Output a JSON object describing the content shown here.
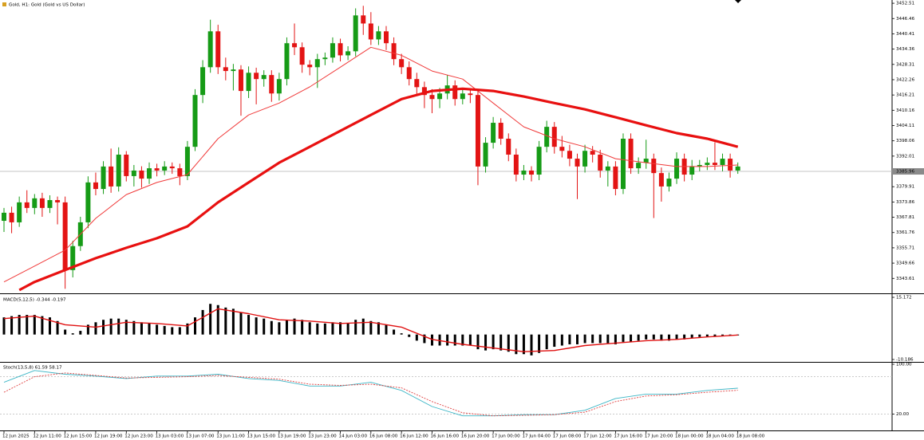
{
  "chart_data": [
    {
      "type": "candlestick",
      "title": "Gold, H1: Gold (Gold vs US Dollar)",
      "up_color": "#169b16",
      "down_color": "#e31414",
      "categories": [
        "12 Jun 2025",
        null,
        null,
        null,
        "12 Jun 11:00",
        null,
        null,
        null,
        "12 Jun 15:00",
        null,
        null,
        null,
        "12 Jun 19:00",
        null,
        null,
        null,
        "12 Jun 23:00",
        null,
        null,
        null,
        "13 Jun 03:00",
        null,
        null,
        null,
        "13 Jun 07:00",
        null,
        null,
        null,
        "13 Jun 11:00",
        null,
        null,
        null,
        "13 Jun 15:00",
        null,
        null,
        null,
        "13 Jun 19:00",
        null,
        null,
        null,
        "13 Jun 23:00",
        null,
        null,
        null,
        "14 Jun 03:00",
        null,
        null,
        null,
        "16 Jun 08:00",
        null,
        null,
        null,
        "16 Jun 12:00",
        null,
        null,
        null,
        "16 Jun 16:00",
        null,
        null,
        null,
        "16 Jun 20:00",
        null,
        null,
        null,
        "17 Jun 00:00",
        null,
        null,
        null,
        "17 Jun 04:00",
        null,
        null,
        null,
        "17 Jun 08:00",
        null,
        null,
        null,
        "17 Jun 12:00",
        null,
        null,
        null,
        "17 Jun 16:00",
        null,
        null,
        null,
        "17 Jun 20:00",
        null,
        null,
        null,
        "18 Jun 00:00",
        null,
        null,
        null,
        "18 Jun 04:00",
        null,
        null,
        null,
        "18 Jun 08:00"
      ],
      "open": [
        3366.4,
        3369.6,
        3365.8,
        3373.7,
        3371.5,
        3375.3,
        3371.5,
        3374.6,
        3373.7,
        3346.9,
        3356.4,
        3365.8,
        3381.6,
        3379.0,
        3387.9,
        3380.0,
        3392.6,
        3384.1,
        3386.3,
        3383.1,
        3387.2,
        3386.3,
        3387.9,
        3387.2,
        3384.1,
        3395.7,
        3416.2,
        3427.2,
        3441.4,
        3427.2,
        3425.7,
        3426.3,
        3417.8,
        3425.0,
        3422.5,
        3424.1,
        3416.8,
        3422.5,
        3436.7,
        3435.1,
        3428.2,
        3427.2,
        3430.4,
        3431.0,
        3436.7,
        3431.9,
        3433.5,
        3447.7,
        3444.5,
        3438.2,
        3441.4,
        3436.7,
        3430.4,
        3427.2,
        3422.5,
        3419.3,
        3416.2,
        3414.6,
        3416.8,
        3420.0,
        3414.6,
        3416.8,
        3416.2,
        3387.9,
        3397.3,
        3405.2,
        3398.9,
        3392.6,
        3384.7,
        3386.3,
        3384.7,
        3395.7,
        3403.6,
        3395.7,
        3394.1,
        3391.0,
        3387.9,
        3394.1,
        3392.6,
        3386.3,
        3387.9,
        3379.0,
        3398.9,
        3387.2,
        3389.4,
        3391.0,
        3385.3,
        3380.0,
        3383.1,
        3391.0,
        3384.7,
        3387.9,
        3388.5,
        3389.4,
        3388.5,
        3391.0,
        3386.3
      ],
      "high": [
        3371.5,
        3372.0,
        3376.0,
        3378.5,
        3377.0,
        3377.5,
        3376.5,
        3376.0,
        3376.0,
        3358.5,
        3368.0,
        3384.0,
        3385.5,
        3390.0,
        3395.0,
        3395.5,
        3394.0,
        3388.5,
        3388.0,
        3389.5,
        3389.0,
        3390.0,
        3389.5,
        3389.0,
        3398.0,
        3418.5,
        3430.0,
        3446.0,
        3444.0,
        3431.0,
        3428.5,
        3428.0,
        3427.5,
        3427.0,
        3426.0,
        3426.0,
        3425.0,
        3439.0,
        3444.5,
        3437.0,
        3430.0,
        3432.5,
        3433.0,
        3439.0,
        3438.5,
        3435.5,
        3450.5,
        3451.5,
        3449.0,
        3443.5,
        3443.5,
        3439.0,
        3432.5,
        3429.5,
        3425.0,
        3421.5,
        3418.5,
        3419.0,
        3424.0,
        3422.0,
        3419.0,
        3418.5,
        3418.0,
        3399.5,
        3407.5,
        3407.0,
        3401.0,
        3395.0,
        3388.5,
        3388.0,
        3398.0,
        3406.0,
        3405.5,
        3400.0,
        3396.5,
        3393.0,
        3396.5,
        3396.0,
        3394.5,
        3390.0,
        3390.0,
        3401.0,
        3401.0,
        3391.5,
        3398.5,
        3393.0,
        3387.5,
        3385.5,
        3393.5,
        3393.0,
        3390.5,
        3390.5,
        3391.5,
        3397.5,
        3393.0,
        3393.0,
        3389.5
      ],
      "low": [
        3362.0,
        3361.5,
        3364.0,
        3369.5,
        3369.0,
        3368.0,
        3369.5,
        3365.0,
        3339.5,
        3344.0,
        3354.5,
        3363.5,
        3376.5,
        3377.0,
        3377.5,
        3378.0,
        3382.0,
        3380.0,
        3379.5,
        3381.0,
        3384.0,
        3384.5,
        3385.0,
        3380.5,
        3382.5,
        3394.0,
        3413.0,
        3425.0,
        3424.5,
        3422.0,
        3418.0,
        3408.0,
        3415.0,
        3412.5,
        3419.5,
        3413.5,
        3414.0,
        3420.0,
        3432.0,
        3425.0,
        3424.0,
        3419.0,
        3428.0,
        3429.0,
        3429.5,
        3430.0,
        3431.5,
        3440.0,
        3436.0,
        3436.0,
        3434.0,
        3428.0,
        3424.5,
        3420.0,
        3416.5,
        3411.0,
        3409.0,
        3411.0,
        3414.5,
        3412.0,
        3412.5,
        3413.0,
        3380.5,
        3385.5,
        3395.0,
        3396.5,
        3390.0,
        3382.0,
        3382.5,
        3382.0,
        3382.5,
        3393.5,
        3393.0,
        3391.5,
        3388.0,
        3375.0,
        3385.5,
        3389.5,
        3383.5,
        3380.0,
        3376.5,
        3377.0,
        3385.0,
        3385.0,
        3387.0,
        3367.5,
        3374.0,
        3378.0,
        3381.0,
        3382.0,
        3382.5,
        3386.0,
        3386.5,
        3386.5,
        3386.0,
        3383.5,
        3385.0
      ],
      "close": [
        3369.6,
        3365.8,
        3373.7,
        3371.5,
        3375.3,
        3371.5,
        3374.6,
        3373.7,
        3346.9,
        3356.4,
        3365.8,
        3381.6,
        3379.0,
        3387.9,
        3380.0,
        3392.6,
        3384.1,
        3386.3,
        3383.1,
        3387.2,
        3386.3,
        3387.9,
        3387.2,
        3384.1,
        3395.7,
        3416.2,
        3427.2,
        3441.4,
        3427.2,
        3425.7,
        3426.3,
        3417.8,
        3425.0,
        3422.5,
        3424.1,
        3416.8,
        3422.5,
        3436.7,
        3435.1,
        3428.2,
        3427.2,
        3430.4,
        3431.0,
        3436.7,
        3431.9,
        3433.5,
        3447.7,
        3444.5,
        3438.2,
        3441.4,
        3436.7,
        3430.4,
        3427.2,
        3422.5,
        3419.3,
        3416.2,
        3414.6,
        3416.8,
        3420.0,
        3414.6,
        3416.8,
        3416.2,
        3387.9,
        3397.3,
        3405.2,
        3398.9,
        3392.6,
        3384.7,
        3386.3,
        3384.7,
        3395.7,
        3403.6,
        3395.7,
        3394.1,
        3391.0,
        3387.9,
        3394.1,
        3392.6,
        3386.3,
        3387.9,
        3379.0,
        3398.9,
        3387.2,
        3389.4,
        3391.0,
        3385.3,
        3380.0,
        3383.1,
        3391.0,
        3384.7,
        3387.9,
        3388.5,
        3389.4,
        3388.5,
        3391.0,
        3386.3,
        3387.9
      ],
      "series": [
        {
          "color": "#f03a3a",
          "width": 1,
          "x": [
            0,
            4,
            8,
            12,
            16,
            20,
            24,
            28,
            32,
            36,
            40,
            44,
            48,
            52,
            56,
            60,
            64,
            68,
            72,
            76,
            80,
            84,
            88,
            92,
            96
          ],
          "values": [
            3342.2,
            3348.5,
            3354.8,
            3367.4,
            3376.8,
            3381.6,
            3384.7,
            3398.9,
            3408.3,
            3413.0,
            3419.4,
            3427.2,
            3435.1,
            3431.9,
            3425.7,
            3422.5,
            3413.0,
            3403.6,
            3398.9,
            3395.7,
            3391.0,
            3389.4,
            3387.9,
            3387.9,
            3388.5
          ]
        },
        {
          "color": "#e81010",
          "width": 3.2,
          "x": [
            2,
            4,
            8,
            12,
            16,
            20,
            24,
            28,
            32,
            36,
            40,
            44,
            48,
            52,
            56,
            60,
            64,
            68,
            72,
            76,
            80,
            84,
            88,
            92,
            96
          ],
          "values": [
            3339.0,
            3342.2,
            3346.9,
            3351.6,
            3355.7,
            3359.5,
            3364.2,
            3373.7,
            3381.6,
            3389.4,
            3395.7,
            3402.0,
            3408.3,
            3414.6,
            3417.8,
            3418.7,
            3417.8,
            3415.6,
            3413.0,
            3410.5,
            3407.4,
            3404.2,
            3401.1,
            3398.9,
            3395.7
          ]
        }
      ],
      "current_price": 3385.96,
      "ylim": [
        3337.7,
        3453.8
      ],
      "yticks": [
        3452.51,
        3446.46,
        3440.41,
        3434.36,
        3428.31,
        3422.26,
        3416.21,
        3410.16,
        3404.11,
        3398.06,
        3392.01,
        3379.91,
        3373.86,
        3367.81,
        3361.76,
        3355.71,
        3349.66,
        3343.61
      ]
    },
    {
      "type": "bar",
      "title": "MACD(5,12,5) -0.344 -0.197",
      "color": "#000000",
      "values": [
        7,
        7.5,
        8,
        8,
        8,
        7.5,
        7,
        5.5,
        2,
        0.5,
        1.5,
        4,
        5,
        6,
        6.5,
        6.5,
        6,
        5.5,
        5,
        4.5,
        4,
        3.5,
        3,
        3,
        4.5,
        7,
        10,
        12.5,
        12,
        11,
        10.5,
        9,
        8,
        7,
        6.5,
        5.5,
        5,
        6,
        6.5,
        6,
        5,
        4.5,
        4.5,
        5,
        5,
        4.5,
        6,
        6.5,
        5.5,
        5,
        4,
        2,
        0.5,
        -1,
        -2.5,
        -3.5,
        -4.5,
        -4.5,
        -4.5,
        -4.5,
        -4.5,
        -4.5,
        -6,
        -6.5,
        -6,
        -6.5,
        -7,
        -8,
        -8,
        -8.5,
        -7.5,
        -6,
        -5,
        -4.5,
        -4,
        -4,
        -3.5,
        -3.5,
        -3.5,
        -3.5,
        -4,
        -3,
        -3,
        -2.5,
        -2,
        -2,
        -2.5,
        -2.5,
        -2,
        -2,
        -1.5,
        -1,
        -0.8,
        -0.6,
        -0.4,
        -0.4,
        -0.344
      ],
      "signal": {
        "color": "#e01010",
        "x": [
          0,
          4,
          8,
          12,
          16,
          20,
          24,
          28,
          32,
          36,
          40,
          44,
          48,
          52,
          56,
          60,
          64,
          68,
          72,
          76,
          80,
          84,
          88,
          92,
          96
        ],
        "values": [
          6.5,
          7.5,
          4,
          3,
          5,
          4.5,
          3.5,
          10.5,
          8.5,
          6,
          5.5,
          4.5,
          5,
          3,
          -2,
          -4,
          -5.5,
          -7,
          -6.5,
          -4.5,
          -3.5,
          -2.5,
          -2,
          -1,
          -0.197
        ]
      },
      "ylim": [
        -11.16,
        16.15
      ],
      "yticks": [
        15.172,
        -10.186
      ]
    },
    {
      "type": "line",
      "title": "Stoch(13,5,8) 61.59 58.17",
      "x": [
        0,
        4,
        8,
        12,
        16,
        20,
        24,
        28,
        32,
        36,
        40,
        44,
        48,
        52,
        56,
        60,
        64,
        68,
        72,
        76,
        80,
        84,
        88,
        92,
        96
      ],
      "series": [
        {
          "color": "#3cb6c6",
          "dash": false,
          "values": [
            71,
            90,
            84,
            81,
            77,
            81,
            81,
            84,
            77,
            74,
            65,
            65,
            71,
            58,
            32,
            17,
            17,
            19,
            19,
            26,
            45,
            52,
            52,
            58,
            61.59
          ]
        },
        {
          "color": "#e04040",
          "dash": true,
          "values": [
            55,
            80,
            86,
            82,
            78,
            79,
            80,
            82,
            79,
            76,
            68,
            66,
            68,
            62,
            40,
            22,
            17,
            18,
            19,
            23,
            40,
            49,
            51,
            55,
            58.17
          ]
        }
      ],
      "levels": [
        80,
        20
      ],
      "ylim": [
        0,
        100
      ],
      "yticks": [
        {
          "value": 100,
          "label": "100.00"
        },
        {
          "value": 20,
          "label": "20.00"
        }
      ]
    }
  ]
}
